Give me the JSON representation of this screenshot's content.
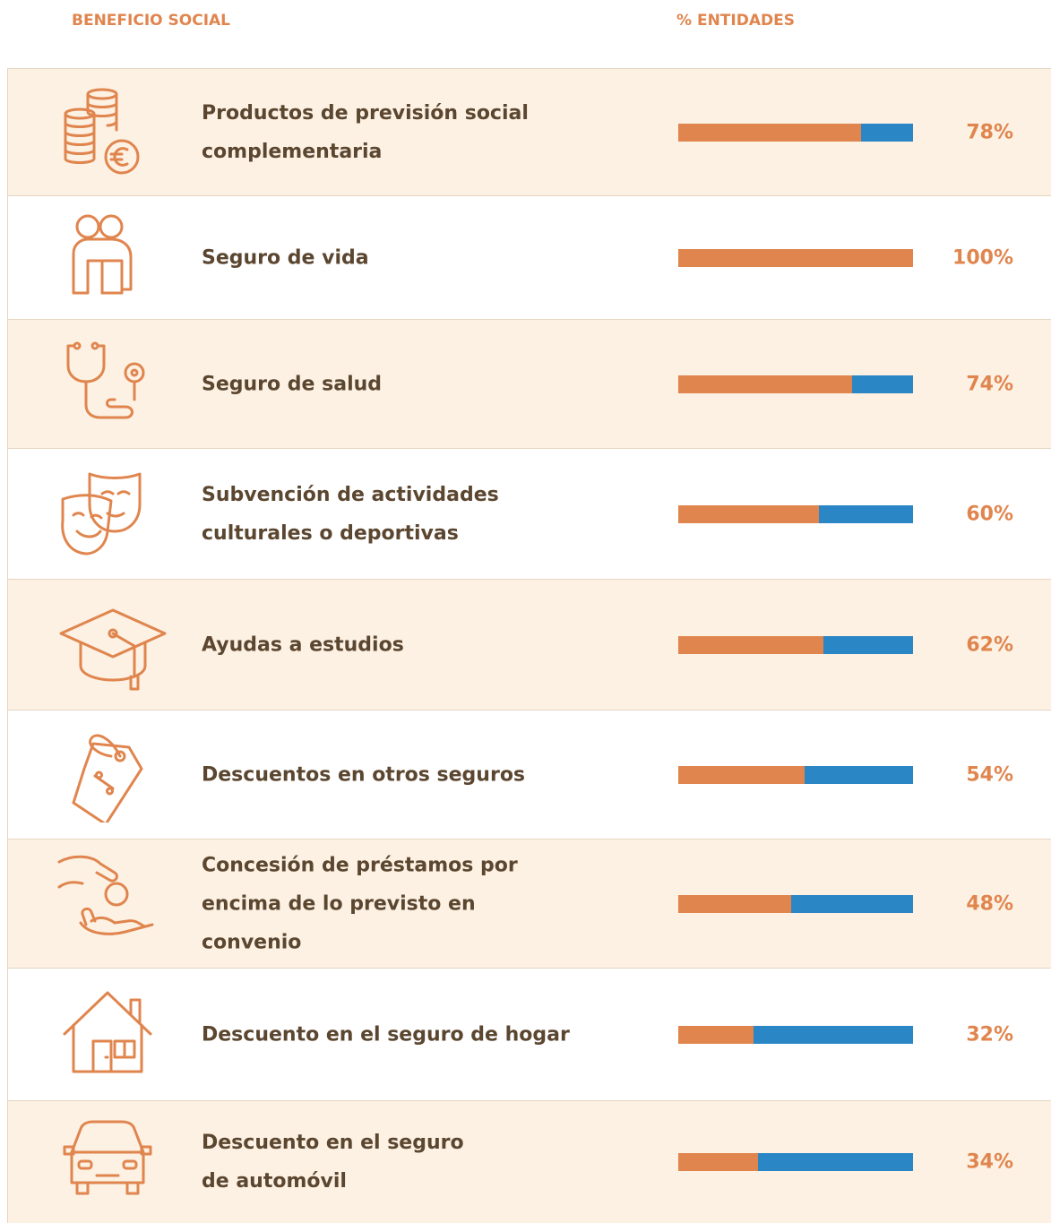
{
  "chart_data": {
    "type": "bar",
    "orientation": "horizontal",
    "header_category": "BENEFICIO SOCIAL",
    "header_value": "% ENTIDADES",
    "categories": [
      "Productos de previsión social complementaria",
      "Seguro de vida",
      "Seguro de salud",
      "Subvención de actividades culturales o deportivas",
      "Ayudas a estudios",
      "Descuentos en otros seguros",
      "Concesión de préstamos por encima de lo previsto en convenio",
      "Descuento en el seguro de hogar",
      "Descuento en el seguro de automóvil"
    ],
    "values": [
      78,
      100,
      74,
      60,
      62,
      54,
      48,
      32,
      34
    ],
    "value_labels": [
      "78%",
      "100%",
      "74%",
      "60%",
      "62%",
      "54%",
      "48%",
      "32%",
      "34%"
    ],
    "xlim": [
      0,
      100
    ],
    "color": "#e0854e",
    "track_color": "#2a86c5"
  }
}
